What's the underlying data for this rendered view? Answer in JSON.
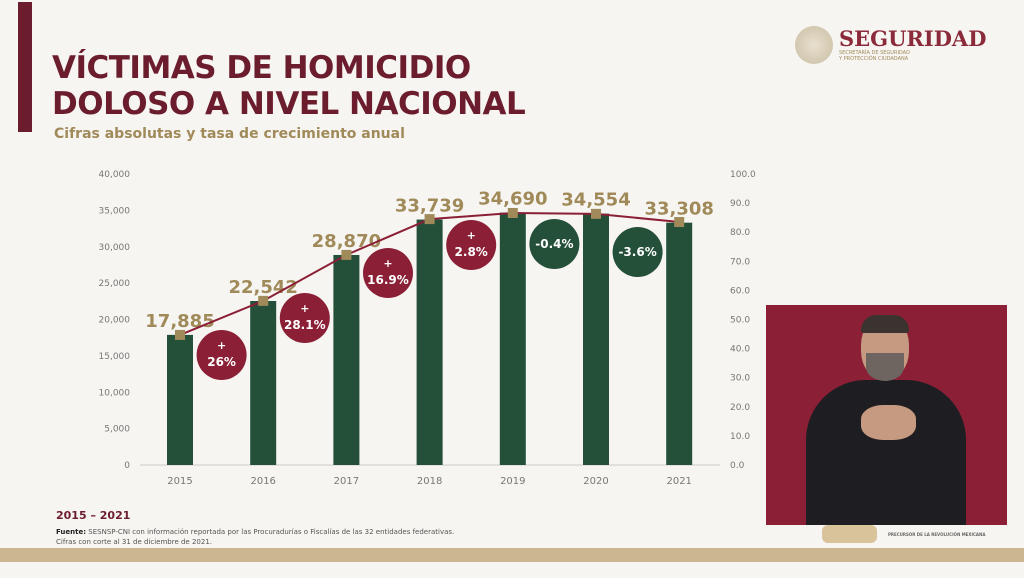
{
  "header": {
    "title_line1": "VÍCTIMAS DE HOMICIDIO",
    "title_line2": "DOLOSO A NIVEL NACIONAL",
    "subtitle": "Cifras absolutas y tasa de crecimiento anual"
  },
  "logo": {
    "name": "SEGURIDAD",
    "sub1": "SECRETARÍA DE SEGURIDAD",
    "sub2": "Y PROTECCIÓN CIUDADANA"
  },
  "chart_data": {
    "type": "bar",
    "categories": [
      "2015",
      "2016",
      "2017",
      "2018",
      "2019",
      "2020",
      "2021"
    ],
    "values": [
      17885,
      22542,
      28870,
      33739,
      34690,
      34554,
      33308
    ],
    "value_labels": [
      "17,885",
      "22,542",
      "28,870",
      "33,739",
      "34,690",
      "34,554",
      "33,308"
    ],
    "ylim": [
      0,
      40000
    ],
    "yticks": [
      "0",
      "5,000",
      "10,000",
      "15,000",
      "20,000",
      "25,000",
      "30,000",
      "35,000",
      "40,000"
    ],
    "y2lim": [
      0,
      100
    ],
    "y2ticks": [
      "0.0",
      "10.0",
      "20.0",
      "30.0",
      "40.0",
      "50.0",
      "60.0",
      "70.0",
      "80.0",
      "90.0",
      "100.0"
    ],
    "line_values": [
      44.7,
      56.4,
      72.2,
      84.5,
      86.6,
      86.3,
      83.5
    ],
    "growth": [
      {
        "label": "26%",
        "sign": "+",
        "color": "#8a1f35"
      },
      {
        "label": "28.1%",
        "sign": "+",
        "color": "#8a1f35"
      },
      {
        "label": "16.9%",
        "sign": "+",
        "color": "#8a1f35"
      },
      {
        "label": "2.8%",
        "sign": "+",
        "color": "#8a1f35"
      },
      {
        "label": "-0.4%",
        "sign": "",
        "color": "#24503a"
      },
      {
        "label": "-3.6%",
        "sign": "",
        "color": "#24503a"
      }
    ],
    "colors": {
      "bar": "#24503a",
      "line": "#8a1f35",
      "marker": "#a08a5a",
      "value_label": "#a08a5a"
    }
  },
  "period": "2015 – 2021",
  "source": {
    "label": "Fuente:",
    "text": "SESNSP-CNI con información reportada por las Procuradurías o Fiscalías de las 32 entidades federativas.",
    "note": "Cifras con corte al 31 de diciembre de 2021."
  },
  "video": {
    "caption": "PRECURSOR DE LA REVOLUCIÓN MEXICANA"
  }
}
